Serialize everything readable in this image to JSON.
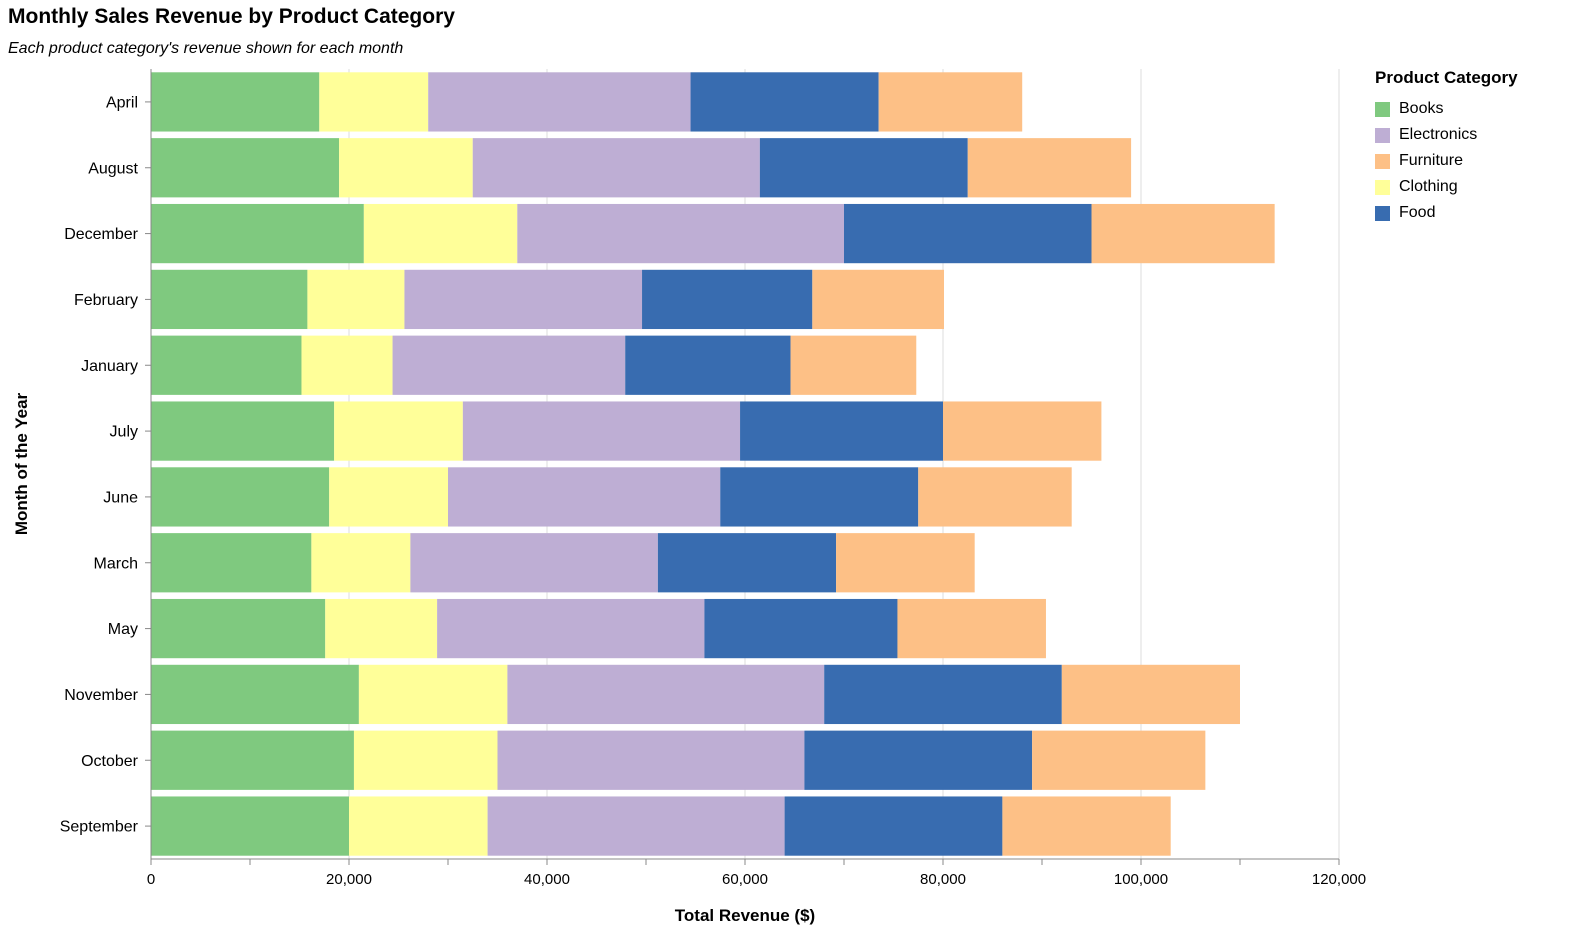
{
  "title": "Monthly Sales Revenue by Product Category",
  "subtitle": "Each product category's revenue shown for each month",
  "chart_data": {
    "type": "bar",
    "orientation": "horizontal",
    "stacked": true,
    "title": "Monthly Sales Revenue by Product Category",
    "subtitle": "Each product category's revenue shown for each month",
    "xlabel": "Total Revenue ($)",
    "ylabel": "Month of the Year",
    "xlim": [
      0,
      120000
    ],
    "x_ticks": [
      "0",
      "20,000",
      "40,000",
      "60,000",
      "80,000",
      "100,000",
      "120,000"
    ],
    "x_tick_values": [
      0,
      20000,
      40000,
      60000,
      80000,
      100000,
      120000
    ],
    "grid": true,
    "legend_position": "right",
    "legend_title": "Product Category",
    "legend_entries": [
      "Books",
      "Electronics",
      "Furniture",
      "Clothing",
      "Food"
    ],
    "categories": [
      "April",
      "August",
      "December",
      "February",
      "January",
      "July",
      "June",
      "March",
      "May",
      "November",
      "October",
      "September"
    ],
    "series": [
      {
        "name": "Books",
        "color": "#7fc97f",
        "values": [
          17000,
          19000,
          21500,
          15800,
          15200,
          18500,
          18000,
          16200,
          17600,
          21000,
          20500,
          20000
        ]
      },
      {
        "name": "Clothing",
        "color": "#ffff99",
        "values": [
          11000,
          13500,
          15500,
          9800,
          9200,
          13000,
          12000,
          10000,
          11300,
          15000,
          14500,
          14000
        ]
      },
      {
        "name": "Electronics",
        "color": "#beaed4",
        "values": [
          26500,
          29000,
          33000,
          24000,
          23500,
          28000,
          27500,
          25000,
          27000,
          32000,
          31000,
          30000
        ]
      },
      {
        "name": "Food",
        "color": "#386cb0",
        "values": [
          19000,
          21000,
          25000,
          17200,
          16700,
          20500,
          20000,
          18000,
          19500,
          24000,
          23000,
          22000
        ]
      },
      {
        "name": "Furniture",
        "color": "#fdc086",
        "values": [
          14500,
          16500,
          18500,
          13300,
          12700,
          16000,
          15500,
          14000,
          15000,
          18000,
          17500,
          17000
        ]
      }
    ]
  }
}
